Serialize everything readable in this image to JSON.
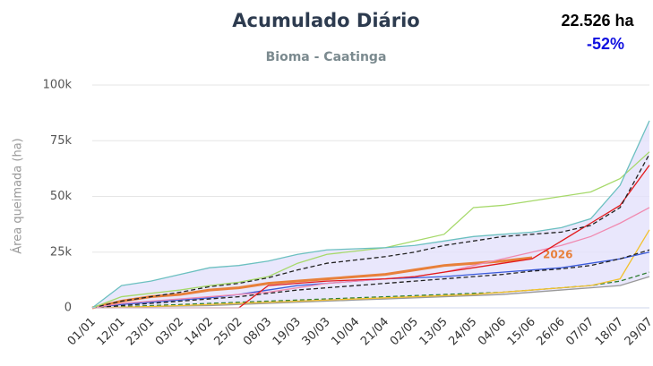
{
  "chart_data": {
    "type": "line",
    "title": "Acumulado Diário",
    "subtitle": "Bioma - Caatinga",
    "total": "22.526 ha",
    "change": "-52%",
    "y_label": "Área queimada (ha)",
    "categories": [
      "01/01",
      "12/01",
      "23/01",
      "03/02",
      "14/02",
      "25/02",
      "08/03",
      "19/03",
      "30/03",
      "10/04",
      "21/04",
      "02/05",
      "13/05",
      "24/05",
      "04/06",
      "15/06",
      "26/06",
      "07/07",
      "18/07",
      "29/07"
    ],
    "ylim": [
      0,
      100000
    ],
    "yticks": [
      0,
      {
        "value": 25000,
        "label": "25k"
      },
      {
        "value": 50000,
        "label": "50k"
      },
      {
        "value": 75000,
        "label": "75k"
      },
      {
        "value": 100000,
        "label": "100k"
      }
    ],
    "grid": true,
    "band_color": "#e4e1fb",
    "series": [
      {
        "color": "#6cc0c0",
        "values": [
          0,
          10000,
          12000,
          15000,
          18000,
          19000,
          21000,
          24000,
          26000,
          26500,
          27000,
          28000,
          30000,
          32000,
          33000,
          34000,
          36000,
          40000,
          55000,
          84000
        ]
      },
      {
        "color": "#a6d96a",
        "values": [
          0,
          5000,
          6500,
          8000,
          10000,
          11500,
          14000,
          20000,
          24000,
          25500,
          27000,
          30000,
          33000,
          45000,
          46000,
          48000,
          50000,
          52000,
          58000,
          70000
        ]
      },
      {
        "color": "#222222",
        "dashed": true,
        "values": [
          0,
          3000,
          5000,
          7000,
          9500,
          11000,
          13500,
          17000,
          20000,
          21500,
          23000,
          25000,
          28000,
          30000,
          32000,
          33000,
          34000,
          37000,
          45000,
          69000
        ]
      },
      {
        "color": "#e31a1c",
        "values": [
          0,
          0,
          0,
          0,
          0,
          0,
          10000,
          11000,
          12000,
          12500,
          13000,
          14000,
          16000,
          18000,
          20000,
          22000,
          30000,
          38000,
          46000,
          64000
        ]
      },
      {
        "color": "#f08ab0",
        "values": [
          0,
          2000,
          3000,
          4000,
          5000,
          6000,
          7000,
          9000,
          11000,
          12000,
          13000,
          14000,
          16000,
          19000,
          22000,
          25000,
          28000,
          32000,
          38000,
          45000
        ]
      },
      {
        "name": "2026",
        "color": "#e8803a",
        "width": 3,
        "values": [
          0,
          3000,
          5000,
          6000,
          8000,
          9000,
          11000,
          12000,
          13000,
          14000,
          15000,
          17000,
          19000,
          20000,
          21000,
          22500,
          null,
          null,
          null,
          null
        ]
      },
      {
        "color": "#222222",
        "dashed": true,
        "values": [
          0,
          1000,
          2000,
          3000,
          4000,
          5000,
          6500,
          8000,
          9000,
          10000,
          11000,
          12000,
          13000,
          14000,
          15000,
          16500,
          17500,
          19000,
          22000,
          26000
        ]
      },
      {
        "color": "#3b5bdb",
        "values": [
          0,
          1500,
          2500,
          3500,
          4500,
          6000,
          8000,
          10000,
          11000,
          12000,
          13000,
          13500,
          14000,
          15000,
          16000,
          17000,
          18000,
          20000,
          22000,
          25000
        ]
      },
      {
        "color": "#f2c12e",
        "values": [
          0,
          300,
          600,
          1000,
          1500,
          2000,
          2500,
          3000,
          3500,
          4000,
          4500,
          5000,
          5500,
          6000,
          7000,
          8000,
          9000,
          10000,
          13000,
          35000
        ]
      },
      {
        "color": "#2e7d32",
        "dashed": true,
        "values": [
          0,
          500,
          1000,
          1500,
          2000,
          2500,
          3000,
          3500,
          4000,
          4500,
          5000,
          5500,
          6000,
          6500,
          7000,
          8000,
          9000,
          10000,
          12000,
          16000
        ]
      },
      {
        "color": "#999999",
        "values": [
          0,
          200,
          500,
          800,
          1000,
          1500,
          2000,
          2500,
          3000,
          3500,
          4000,
          4500,
          5000,
          5500,
          6000,
          7000,
          8000,
          9000,
          10000,
          14000
        ]
      }
    ]
  }
}
